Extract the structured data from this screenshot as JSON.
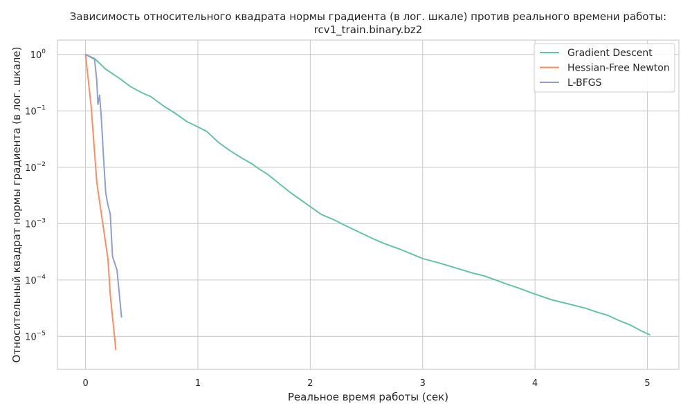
{
  "chart_data": {
    "type": "line",
    "title": "Зависимость относительного квадрата нормы градиента (в лог. шкале) против реального времени работы:",
    "subtitle": "rcv1_train.binary.bz2",
    "xlabel": "Реальное время работы (сек)",
    "ylabel": "Относительный квадрат нормы градиента (в лог. шкале)",
    "xlim": [
      -0.25,
      5.28
    ],
    "ylim": [
      2.6e-06,
      1.8
    ],
    "yscale": "log",
    "grid": true,
    "legend_position": "top-right",
    "x_ticks": [
      {
        "value": 0,
        "label": "0"
      },
      {
        "value": 1,
        "label": "1"
      },
      {
        "value": 2,
        "label": "2"
      },
      {
        "value": 3,
        "label": "3"
      },
      {
        "value": 4,
        "label": "4"
      },
      {
        "value": 5,
        "label": "5"
      }
    ],
    "y_ticks": [
      {
        "value": 1,
        "base": "10",
        "exp": "0"
      },
      {
        "value": 0.1,
        "base": "10",
        "exp": "−1"
      },
      {
        "value": 0.01,
        "base": "10",
        "exp": "−2"
      },
      {
        "value": 0.001,
        "base": "10",
        "exp": "−3"
      },
      {
        "value": 0.0001,
        "base": "10",
        "exp": "−4"
      },
      {
        "value": 1e-05,
        "base": "10",
        "exp": "−5"
      }
    ],
    "series": [
      {
        "name": "Gradient Descent",
        "color": "#66c2a5",
        "points": [
          [
            0,
            1.0
          ],
          [
            0.08,
            0.85
          ],
          [
            0.18,
            0.55
          ],
          [
            0.3,
            0.38
          ],
          [
            0.4,
            0.27
          ],
          [
            0.5,
            0.21
          ],
          [
            0.58,
            0.18
          ],
          [
            0.7,
            0.12
          ],
          [
            0.8,
            0.09
          ],
          [
            0.9,
            0.065
          ],
          [
            1.0,
            0.052
          ],
          [
            1.08,
            0.043
          ],
          [
            1.18,
            0.028
          ],
          [
            1.28,
            0.02
          ],
          [
            1.38,
            0.015
          ],
          [
            1.48,
            0.0115
          ],
          [
            1.55,
            0.0092
          ],
          [
            1.62,
            0.0075
          ],
          [
            1.72,
            0.0052
          ],
          [
            1.82,
            0.0036
          ],
          [
            1.92,
            0.0026
          ],
          [
            2.0,
            0.002
          ],
          [
            2.1,
            0.00145
          ],
          [
            2.2,
            0.0012
          ],
          [
            2.3,
            0.00095
          ],
          [
            2.42,
            0.00073
          ],
          [
            2.55,
            0.00055
          ],
          [
            2.65,
            0.00045
          ],
          [
            2.8,
            0.00035
          ],
          [
            2.9,
            0.00029
          ],
          [
            3.0,
            0.00024
          ],
          [
            3.15,
            0.0002
          ],
          [
            3.3,
            0.000162
          ],
          [
            3.45,
            0.000132
          ],
          [
            3.55,
            0.000118
          ],
          [
            3.65,
            0.0001
          ],
          [
            3.75,
            8.45e-05
          ],
          [
            3.85,
            7.25e-05
          ],
          [
            3.95,
            6.1e-05
          ],
          [
            4.05,
            5.2e-05
          ],
          [
            4.15,
            4.45e-05
          ],
          [
            4.3,
            3.75e-05
          ],
          [
            4.45,
            3.15e-05
          ],
          [
            4.55,
            2.7e-05
          ],
          [
            4.65,
            2.35e-05
          ],
          [
            4.75,
            1.9e-05
          ],
          [
            4.85,
            1.58e-05
          ],
          [
            4.95,
            1.24e-05
          ],
          [
            5.02,
            1.07e-05
          ]
        ]
      },
      {
        "name": "Hessian-Free Newton",
        "color": "#fc8d62",
        "points": [
          [
            0,
            1.0
          ],
          [
            0.05,
            0.12
          ],
          [
            0.1,
            0.0055
          ],
          [
            0.15,
            0.0011
          ],
          [
            0.2,
            0.00023
          ],
          [
            0.22,
            5.5e-05
          ],
          [
            0.27,
            5.8e-06
          ]
        ]
      },
      {
        "name": "L-BFGS",
        "color": "#8da0cb",
        "points": [
          [
            0,
            1.0
          ],
          [
            0.08,
            0.82
          ],
          [
            0.1,
            0.35
          ],
          [
            0.11,
            0.13
          ],
          [
            0.125,
            0.19
          ],
          [
            0.14,
            0.08
          ],
          [
            0.16,
            0.015
          ],
          [
            0.18,
            0.0035
          ],
          [
            0.2,
            0.0021
          ],
          [
            0.22,
            0.0015
          ],
          [
            0.24,
            0.00026
          ],
          [
            0.28,
            0.00015
          ],
          [
            0.32,
            2.2e-05
          ]
        ]
      }
    ]
  }
}
